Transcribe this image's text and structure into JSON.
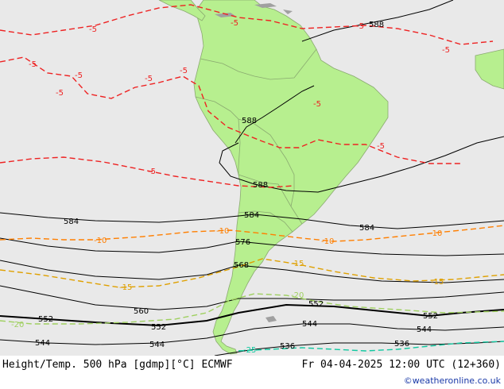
{
  "map": {
    "ocean_color": "#e9e9e9",
    "land_color": "#b7ef8f",
    "land_border_color": "#8aaa70",
    "height_contour_color": "#000000",
    "temp_colors": {
      "-5": "#ee2222",
      "-10": "#ff7f00",
      "-15": "#dfa000",
      "-20": "#9fd060",
      "-25": "#10c8a0"
    },
    "height_labels": [
      "588",
      "588",
      "588",
      "584",
      "584",
      "584",
      "576",
      "568",
      "560",
      "552",
      "552",
      "552",
      "552",
      "544",
      "544",
      "544",
      "544",
      "536",
      "536"
    ],
    "temp_labels": [
      "-5",
      "-5",
      "-5",
      "-5",
      "-5",
      "-5",
      "-5",
      "-5",
      "-5",
      "-5",
      "-5",
      "-5",
      "-10",
      "-10",
      "-10",
      "-10",
      "-15",
      "-15",
      "-15",
      "-20",
      "-20",
      "-25"
    ]
  },
  "footer": {
    "title": "Height/Temp. 500 hPa [gdmp][°C] ECMWF",
    "time": "Fr 04-04-2025 12:00 UTC (12+360)",
    "credit": "©weatheronline.co.uk"
  }
}
